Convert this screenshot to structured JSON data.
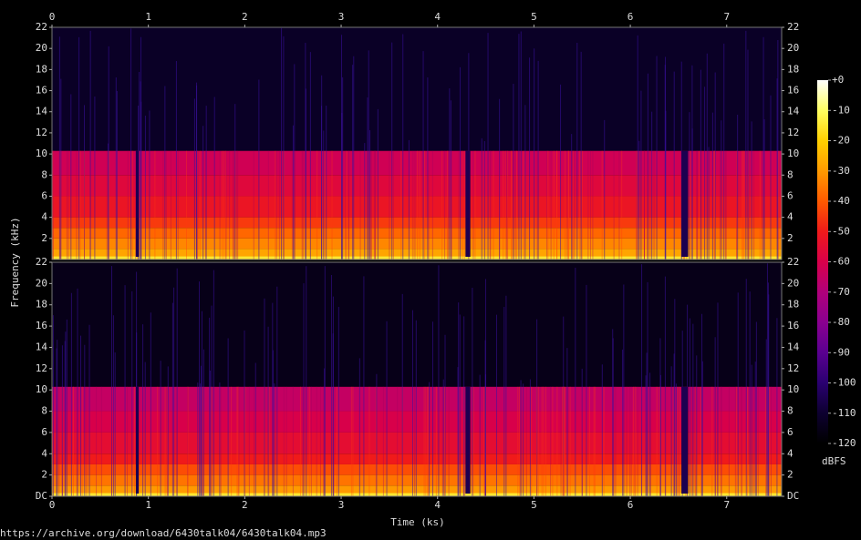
{
  "chart_data": {
    "type": "spectrogram",
    "x_label": "Time (ks)",
    "y_label": "Frequency (kHz)",
    "colorbar_label": "dBFS",
    "source": "https://archive.org/download/6430talk04/6430talk04.mp3",
    "xlim": [
      0,
      7.57
    ],
    "xticks": [
      0,
      1,
      2,
      3,
      4,
      5,
      6,
      7
    ],
    "ylim": [
      0,
      22
    ],
    "freq_edges": [
      0,
      0.3,
      1,
      2,
      3,
      4,
      6,
      8,
      10.3,
      22
    ],
    "channels": [
      {
        "yticks": [
          2,
          4,
          6,
          8,
          10,
          12,
          14,
          16,
          18,
          20,
          22
        ],
        "levels": [
          -15,
          -28,
          -33,
          -38,
          -45,
          -52,
          -57,
          -62,
          -112
        ]
      },
      {
        "yticks": [
          {
            "value": 0,
            "label": "DC"
          },
          2,
          4,
          6,
          8,
          10,
          12,
          14,
          16,
          18,
          20,
          22
        ],
        "levels": [
          -15,
          -30,
          -36,
          -42,
          -50,
          -55,
          -60,
          -65,
          -115
        ]
      }
    ],
    "dropouts": [
      {
        "start": 0.87,
        "end": 0.9
      },
      {
        "start": 4.29,
        "end": 4.34
      },
      {
        "start": 6.53,
        "end": 6.6
      }
    ],
    "dropout_level": -105,
    "clim": [
      -120,
      0
    ],
    "cticks": [
      {
        "value": 0,
        "label": "+0"
      },
      -10,
      -20,
      -30,
      -40,
      -50,
      -60,
      -70,
      -80,
      -90,
      -100,
      -110,
      -120
    ],
    "colormap": [
      "#000000",
      "#0d0030",
      "#2a0070",
      "#5a0090",
      "#8a0090",
      "#b0007a",
      "#d8004a",
      "#f01a1a",
      "#ff5a00",
      "#ff9a00",
      "#ffd000",
      "#ffff60",
      "#ffffff"
    ]
  }
}
